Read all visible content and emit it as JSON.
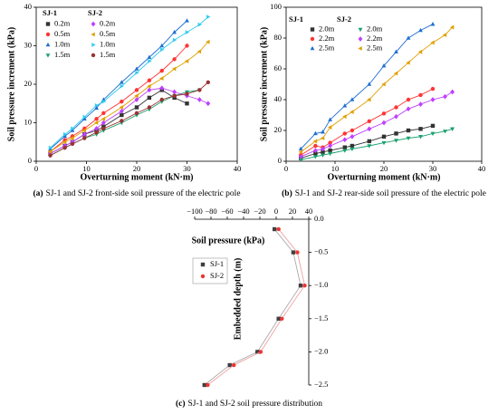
{
  "chart_data": [
    {
      "type": "line",
      "panel_label": "(a)",
      "caption": "SJ-1 and SJ-2 front-side soil pressure of the electric pole",
      "x_label": "Overturning moment (kN·m)",
      "y_label": "Soil pressure increment (kPa)",
      "x": [
        2.8,
        5.7,
        7.2,
        9.6,
        12,
        13.4,
        17,
        20,
        22.5,
        25,
        27.5,
        30,
        32.5,
        34.2
      ],
      "xlim": [
        0,
        40
      ],
      "xticks": [
        0,
        10,
        20,
        30,
        40
      ],
      "ylim": [
        0,
        40
      ],
      "yticks": [
        0,
        10,
        20,
        30,
        40
      ],
      "series_groups": [
        {
          "name": "SJ-1",
          "series": [
            {
              "name": "0.2m",
              "color": "#333333",
              "marker": "square",
              "values": [
                2,
                4,
                5,
                7,
                8,
                9,
                12,
                14,
                16.5,
                18.5,
                16.5,
                15,
                null,
                null
              ]
            },
            {
              "name": "0.5m",
              "color": "#ff3333",
              "marker": "circle",
              "values": [
                2.5,
                5.5,
                6.5,
                8.5,
                11,
                12.5,
                15.5,
                18.5,
                21,
                23.5,
                26.5,
                30,
                null,
                null
              ]
            },
            {
              "name": "1.0m",
              "color": "#1f6fd1",
              "marker": "triangle-up",
              "values": [
                3.2,
                6.5,
                8,
                11,
                13.8,
                16,
                20.5,
                24,
                27,
                30,
                33.5,
                36.5,
                null,
                null
              ]
            },
            {
              "name": "1.5m",
              "color": "#1aa06f",
              "marker": "triangle-down",
              "values": [
                1.5,
                3.5,
                4.5,
                6,
                7,
                8,
                10,
                12,
                13.5,
                15.5,
                17,
                18,
                18.5,
                null
              ]
            }
          ]
        },
        {
          "name": "SJ-2",
          "series": [
            {
              "name": "0.2m",
              "color": "#c040ff",
              "marker": "diamond",
              "values": [
                2,
                4,
                5,
                7,
                8.5,
                10,
                13,
                16,
                18.5,
                19,
                18,
                17,
                16,
                15
              ]
            },
            {
              "name": "0.5m",
              "color": "#e0a000",
              "marker": "triangle-left",
              "values": [
                2.5,
                5,
                6,
                8,
                10,
                11,
                14,
                17,
                19.5,
                21.5,
                24,
                26,
                28.5,
                31
              ]
            },
            {
              "name": "1.0m",
              "color": "#33ccee",
              "marker": "triangle-right",
              "values": [
                3.5,
                7,
                8.5,
                11.5,
                14.5,
                15.5,
                19.5,
                23,
                26,
                29,
                31.5,
                33.5,
                35.5,
                37.5
              ]
            },
            {
              "name": "1.5m",
              "color": "#993333",
              "marker": "circle",
              "values": [
                1.5,
                3.5,
                4.5,
                6,
                7.5,
                8.5,
                10.5,
                12.5,
                14,
                16,
                17,
                17.5,
                18.5,
                20.5
              ]
            }
          ]
        }
      ]
    },
    {
      "type": "line",
      "panel_label": "(b)",
      "caption": "SJ-1 and SJ-2 rear-side soil pressure of the electric pole",
      "x_label": "Overturning moment (kN·m)",
      "y_label": "Soil pressure increment (kPa)",
      "x": [
        3,
        6,
        7.5,
        9,
        12,
        13.5,
        17,
        20,
        22.5,
        25,
        27.5,
        30,
        32.5,
        34
      ],
      "xlim": [
        0,
        40
      ],
      "xticks": [
        0,
        10,
        20,
        30,
        40
      ],
      "ylim": [
        0,
        100
      ],
      "yticks": [
        0,
        20,
        40,
        60,
        80,
        100
      ],
      "series_groups": [
        {
          "name": "SJ-1",
          "series": [
            {
              "name": "2.0m",
              "color": "#333333",
              "marker": "square",
              "values": [
                2,
                5,
                6,
                7,
                9,
                10,
                13,
                16,
                18,
                20,
                21,
                23,
                null,
                null
              ]
            },
            {
              "name": "2.2m",
              "color": "#ff3333",
              "marker": "circle",
              "values": [
                4,
                10,
                9,
                12,
                18,
                20,
                26,
                31,
                35,
                40,
                43,
                47,
                null,
                null
              ]
            },
            {
              "name": "2.5m",
              "color": "#1f6fd1",
              "marker": "triangle-up",
              "values": [
                8,
                18,
                19,
                27,
                36,
                40,
                50,
                62,
                71,
                80,
                85,
                89,
                null,
                null
              ]
            }
          ]
        },
        {
          "name": "SJ-2",
          "series": [
            {
              "name": "2.0m",
              "color": "#1aa06f",
              "marker": "triangle-down",
              "values": [
                1,
                3,
                4,
                5,
                7,
                8,
                10,
                12,
                13.5,
                15,
                16,
                18,
                19.5,
                21
              ]
            },
            {
              "name": "2.2m",
              "color": "#c040ff",
              "marker": "diamond",
              "values": [
                3,
                7,
                8,
                10,
                14,
                16,
                21,
                25,
                29,
                34,
                37,
                40,
                42,
                45
              ]
            },
            {
              "name": "2.5m",
              "color": "#e0a000",
              "marker": "triangle-left",
              "values": [
                6,
                13,
                15,
                22,
                29,
                32,
                40,
                50,
                57,
                64,
                71,
                77,
                82,
                87
              ]
            }
          ]
        }
      ]
    },
    {
      "type": "line",
      "panel_label": "(c)",
      "caption": "SJ-1 and SJ-2 soil pressure distribution",
      "x_label": "Soil pressure (kPa)",
      "y_label": "Embedded depth (m)",
      "x_axis_position": "top",
      "y_axis_position": "right",
      "xlim": [
        -100,
        40
      ],
      "xticks": [
        {
          "value": -100,
          "label": "−100"
        },
        {
          "value": -80,
          "label": "−80"
        },
        {
          "value": -60,
          "label": "−60"
        },
        {
          "value": -40,
          "label": "−40"
        },
        {
          "value": -20,
          "label": "−20"
        },
        0,
        20,
        40
      ],
      "ylim": [
        -2.5,
        0
      ],
      "yticks": [
        {
          "value": 0,
          "label": "0.0"
        },
        {
          "value": -0.5,
          "label": "−0.5"
        },
        {
          "value": -1,
          "label": "−1.0"
        },
        {
          "value": -1.5,
          "label": "−1.5"
        },
        {
          "value": -2,
          "label": "−2.0"
        },
        {
          "value": -2.5,
          "label": "−2.5"
        }
      ],
      "series": [
        {
          "name": "SJ-1",
          "color": "#404040",
          "line_color": "#aaaaaa",
          "marker": "square",
          "x": [
            -2,
            21,
            30,
            3,
            -23,
            -57,
            -88
          ],
          "values": [
            -0.15,
            -0.5,
            -1.0,
            -1.5,
            -2.0,
            -2.2,
            -2.5
          ]
        },
        {
          "name": "SJ-2",
          "color": "#ee3333",
          "line_color": "#f0a0a0",
          "marker": "circle",
          "x": [
            3,
            26,
            35,
            7,
            -19,
            -52,
            -84
          ],
          "values": [
            -0.15,
            -0.5,
            -1.0,
            -1.5,
            -2.0,
            -2.2,
            -2.5
          ]
        }
      ]
    }
  ]
}
